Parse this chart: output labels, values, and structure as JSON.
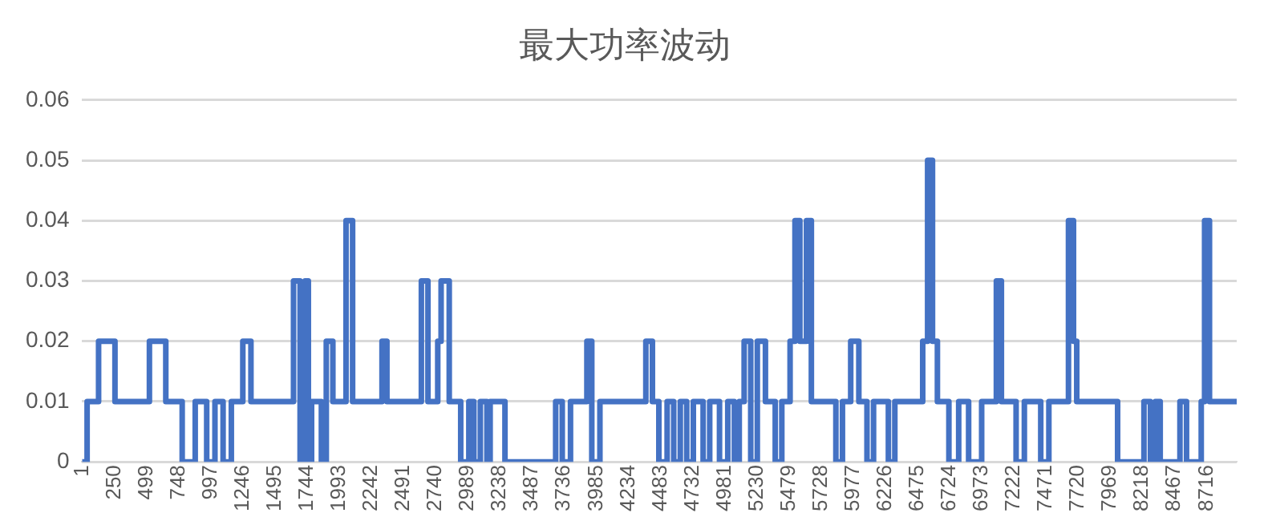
{
  "chart_data": {
    "type": "line",
    "title": "最大功率波动",
    "color": "#4472c4",
    "marker": "none",
    "grid": "y",
    "legend": false,
    "xlim": [
      1,
      8950
    ],
    "xticks": [
      1,
      250,
      499,
      748,
      997,
      1246,
      1495,
      1744,
      1993,
      2242,
      2491,
      2740,
      2989,
      3238,
      3487,
      3736,
      3985,
      4234,
      4483,
      4732,
      4981,
      5230,
      5479,
      5728,
      5977,
      6226,
      6475,
      6724,
      6973,
      7222,
      7471,
      7720,
      7969,
      8218,
      8467,
      8716
    ],
    "ylim": [
      0,
      0.06
    ],
    "yticks": [
      0,
      0.01,
      0.02,
      0.03,
      0.04,
      0.05,
      0.06
    ],
    "x": [
      1,
      39,
      39,
      128,
      128,
      255,
      255,
      522,
      522,
      649,
      649,
      776,
      776,
      877,
      877,
      966,
      966,
      1030,
      1030,
      1093,
      1093,
      1157,
      1157,
      1246,
      1246,
      1309,
      1309,
      1639,
      1639,
      1690,
      1690,
      1728,
      1728,
      1754,
      1754,
      1779,
      1779,
      1855,
      1855,
      1893,
      1893,
      1944,
      1944,
      2046,
      2046,
      2097,
      2097,
      2325,
      2325,
      2363,
      2363,
      2630,
      2630,
      2681,
      2681,
      2757,
      2757,
      2783,
      2783,
      2846,
      2846,
      2935,
      2935,
      2998,
      2998,
      3037,
      3037,
      3087,
      3087,
      3138,
      3138,
      3163,
      3163,
      3278,
      3278,
      3671,
      3671,
      3722,
      3722,
      3786,
      3786,
      3913,
      3913,
      3951,
      3951,
      4014,
      4014,
      4078,
      4078,
      4370,
      4370,
      4421,
      4421,
      4471,
      4471,
      4535,
      4535,
      4586,
      4586,
      4637,
      4637,
      4687,
      4687,
      4738,
      4738,
      4814,
      4814,
      4865,
      4865,
      4941,
      4941,
      5005,
      5005,
      5056,
      5056,
      5094,
      5094,
      5132,
      5132,
      5183,
      5183,
      5234,
      5234,
      5297,
      5297,
      5373,
      5373,
      5424,
      5424,
      5488,
      5488,
      5526,
      5526,
      5564,
      5564,
      5615,
      5615,
      5653,
      5653,
      5843,
      5843,
      5894,
      5894,
      5958,
      5958,
      6021,
      6021,
      6084,
      6084,
      6135,
      6135,
      6250,
      6250,
      6300,
      6300,
      6516,
      6516,
      6554,
      6554,
      6592,
      6592,
      6630,
      6630,
      6719,
      6719,
      6795,
      6795,
      6872,
      6872,
      6973,
      6973,
      7087,
      7087,
      7126,
      7126,
      7240,
      7240,
      7304,
      7304,
      7431,
      7431,
      7494,
      7494,
      7646,
      7646,
      7685,
      7685,
      7710,
      7710,
      8027,
      8027,
      8231,
      8231,
      8281,
      8281,
      8319,
      8319,
      8357,
      8357,
      8510,
      8510,
      8561,
      8561,
      8675,
      8675,
      8701,
      8701,
      8739,
      8739,
      8950
    ],
    "values": [
      0,
      0,
      0.01,
      0.01,
      0.02,
      0.02,
      0.01,
      0.01,
      0.02,
      0.02,
      0.01,
      0.01,
      0,
      0,
      0.01,
      0.01,
      0,
      0,
      0.01,
      0.01,
      0,
      0,
      0.01,
      0.01,
      0.02,
      0.02,
      0.01,
      0.01,
      0.03,
      0.03,
      0,
      0,
      0.03,
      0.03,
      0,
      0,
      0.01,
      0.01,
      0,
      0,
      0.02,
      0.02,
      0.01,
      0.01,
      0.04,
      0.04,
      0.01,
      0.01,
      0.02,
      0.02,
      0.01,
      0.01,
      0.03,
      0.03,
      0.01,
      0.01,
      0.02,
      0.02,
      0.03,
      0.03,
      0.01,
      0.01,
      0,
      0,
      0.01,
      0.01,
      0,
      0,
      0.01,
      0.01,
      0,
      0,
      0.01,
      0.01,
      0,
      0,
      0.01,
      0.01,
      0,
      0,
      0.01,
      0.01,
      0.02,
      0.02,
      0,
      0,
      0.01,
      0.01,
      0.01,
      0.01,
      0.02,
      0.02,
      0.01,
      0.01,
      0,
      0,
      0.01,
      0.01,
      0,
      0,
      0.01,
      0.01,
      0,
      0,
      0.01,
      0.01,
      0,
      0,
      0.01,
      0.01,
      0,
      0,
      0.01,
      0.01,
      0,
      0,
      0.01,
      0.01,
      0.02,
      0.02,
      0,
      0,
      0.02,
      0.02,
      0.01,
      0.01,
      0,
      0,
      0.01,
      0.01,
      0.02,
      0.02,
      0.04,
      0.04,
      0.02,
      0.02,
      0.04,
      0.04,
      0.01,
      0.01,
      0,
      0,
      0.01,
      0.01,
      0.02,
      0.02,
      0.01,
      0.01,
      0,
      0,
      0.01,
      0.01,
      0,
      0,
      0.01,
      0.01,
      0.02,
      0.02,
      0.05,
      0.05,
      0.02,
      0.02,
      0.01,
      0.01,
      0,
      0,
      0.01,
      0.01,
      0,
      0,
      0.01,
      0.01,
      0.03,
      0.03,
      0.01,
      0.01,
      0,
      0,
      0.01,
      0.01,
      0,
      0,
      0.01,
      0.01,
      0.04,
      0.04,
      0.02,
      0.02,
      0.01,
      0.01,
      0,
      0,
      0.01,
      0.01,
      0,
      0,
      0.01,
      0.01,
      0,
      0,
      0.01,
      0.01,
      0,
      0,
      0.01,
      0.01,
      0.04,
      0.04,
      0.01,
      0.01
    ]
  }
}
